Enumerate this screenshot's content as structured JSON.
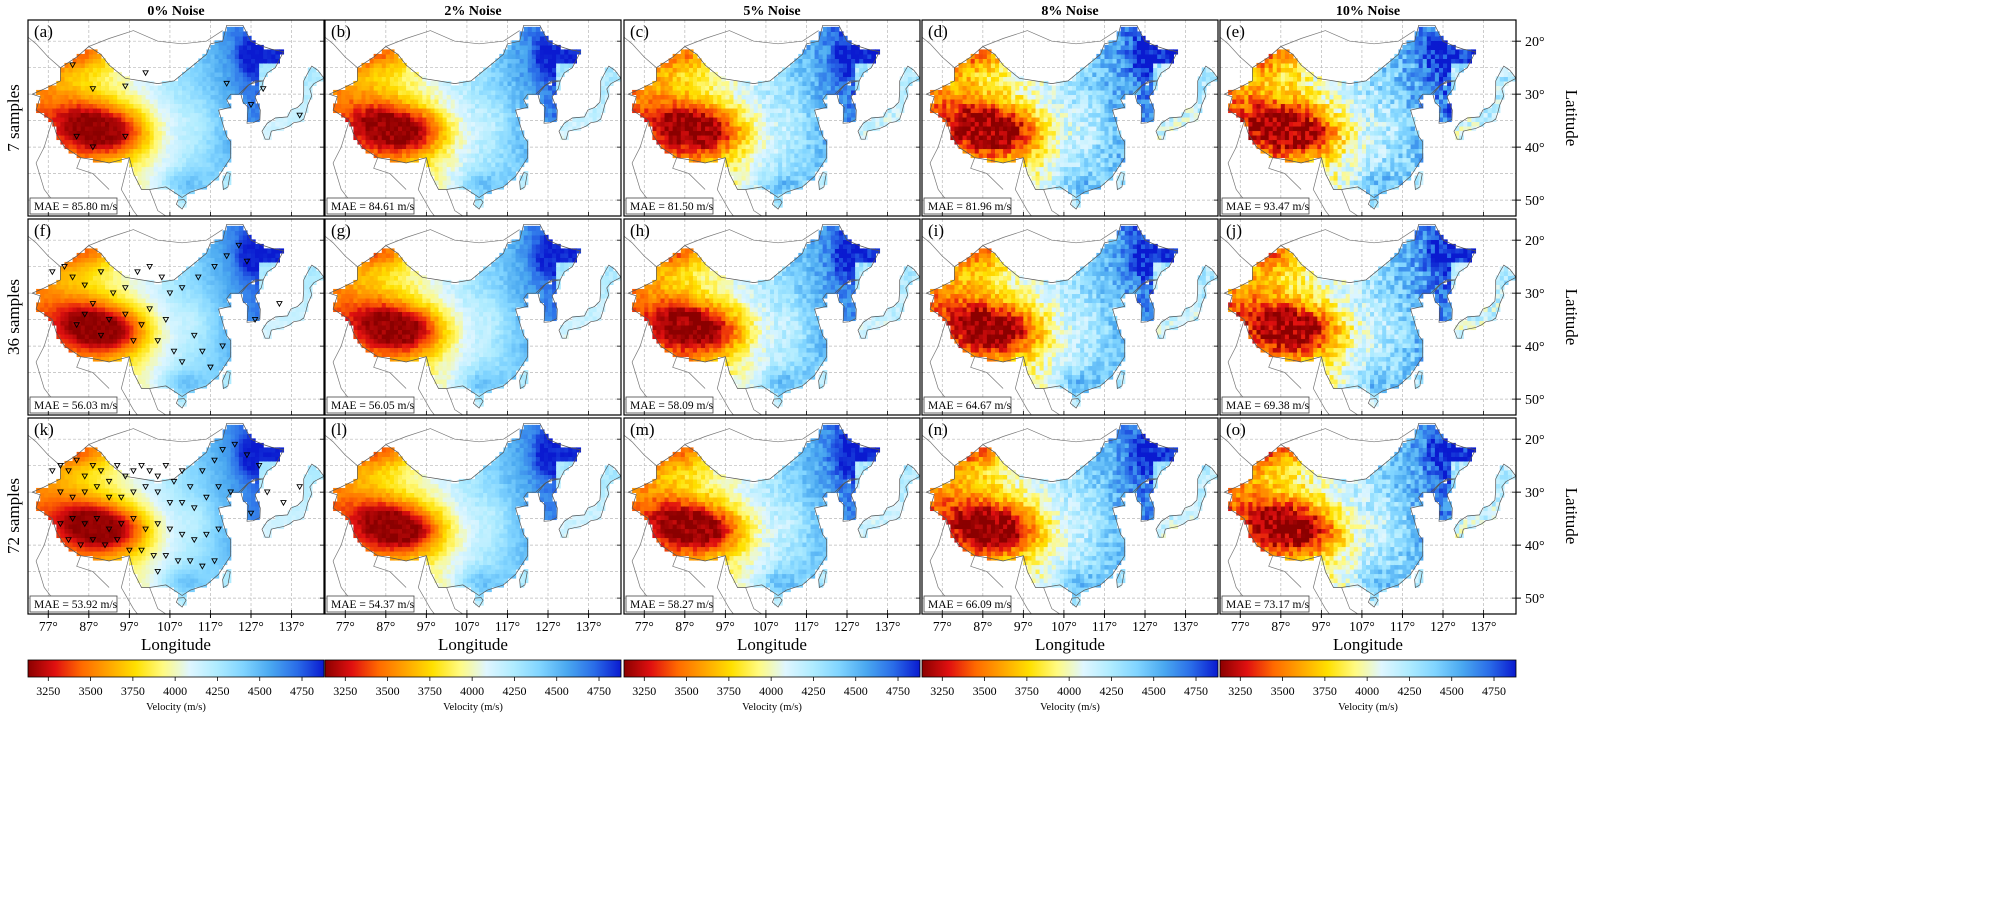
{
  "figure": {
    "columns": [
      "0% Noise",
      "2% Noise",
      "5% Noise",
      "8% Noise",
      "10% Noise"
    ],
    "rows": [
      "7 samples",
      "36 samples",
      "72 samples"
    ],
    "panel_labels": [
      "(a)",
      "(b)",
      "(c)",
      "(d)",
      "(e)",
      "(f)",
      "(g)",
      "(h)",
      "(i)",
      "(j)",
      "(k)",
      "(l)",
      "(m)",
      "(n)",
      "(o)"
    ],
    "mae_labels": [
      [
        "MAE = 85.80 m/s",
        "MAE = 84.61 m/s",
        "MAE = 81.50 m/s",
        "MAE = 81.96 m/s",
        "MAE = 93.47 m/s"
      ],
      [
        "MAE = 56.03 m/s",
        "MAE = 56.05 m/s",
        "MAE = 58.09 m/s",
        "MAE = 64.67 m/s",
        "MAE = 69.38 m/s"
      ],
      [
        "MAE = 53.92 m/s",
        "MAE = 54.37 m/s",
        "MAE = 58.27 m/s",
        "MAE = 66.09 m/s",
        "MAE = 73.17 m/s"
      ]
    ],
    "x_tick_labels": [
      "77°",
      "87°",
      "97°",
      "107°",
      "117°",
      "127°",
      "137°"
    ],
    "y_tick_labels": [
      "50°",
      "40°",
      "30°",
      "20°"
    ],
    "xlabel": "Longitude",
    "ylabel": "Latitude",
    "colorbar": {
      "label": "Velocity (m/s)",
      "ticks": [
        "3250",
        "3500",
        "3750",
        "4000",
        "4250",
        "4500",
        "4750"
      ],
      "colors": [
        "#8b0000",
        "#e01010",
        "#ff6a00",
        "#ffa500",
        "#ffe000",
        "#fffa80",
        "#dff6ff",
        "#b0ecff",
        "#80d4ff",
        "#4aa8f0",
        "#2a6de8",
        "#0a1ad0"
      ]
    }
  },
  "chart_data": {
    "type": "heatmap",
    "title": "",
    "description_variable": "Velocity (m/s)",
    "xlabel": "Longitude",
    "ylabel": "Latitude",
    "xlim": [
      72,
      145
    ],
    "ylim": [
      17,
      54
    ],
    "x_ticks": [
      77,
      87,
      97,
      107,
      117,
      127,
      137
    ],
    "y_ticks": [
      20,
      30,
      40,
      50
    ],
    "colorbar_range": [
      3130,
      4880
    ],
    "colorbar_ticks": [
      3250,
      3500,
      3750,
      4000,
      4250,
      4500,
      4750
    ],
    "noise_levels_percent": [
      0,
      2,
      5,
      8,
      10
    ],
    "sample_counts": [
      7,
      36,
      72
    ],
    "mae_m_per_s": [
      [
        85.8,
        84.61,
        81.5,
        81.96,
        93.47
      ],
      [
        56.03,
        56.05,
        58.09,
        64.67,
        69.38
      ],
      [
        53.92,
        54.37,
        58.27,
        66.09,
        73.17
      ]
    ]
  }
}
